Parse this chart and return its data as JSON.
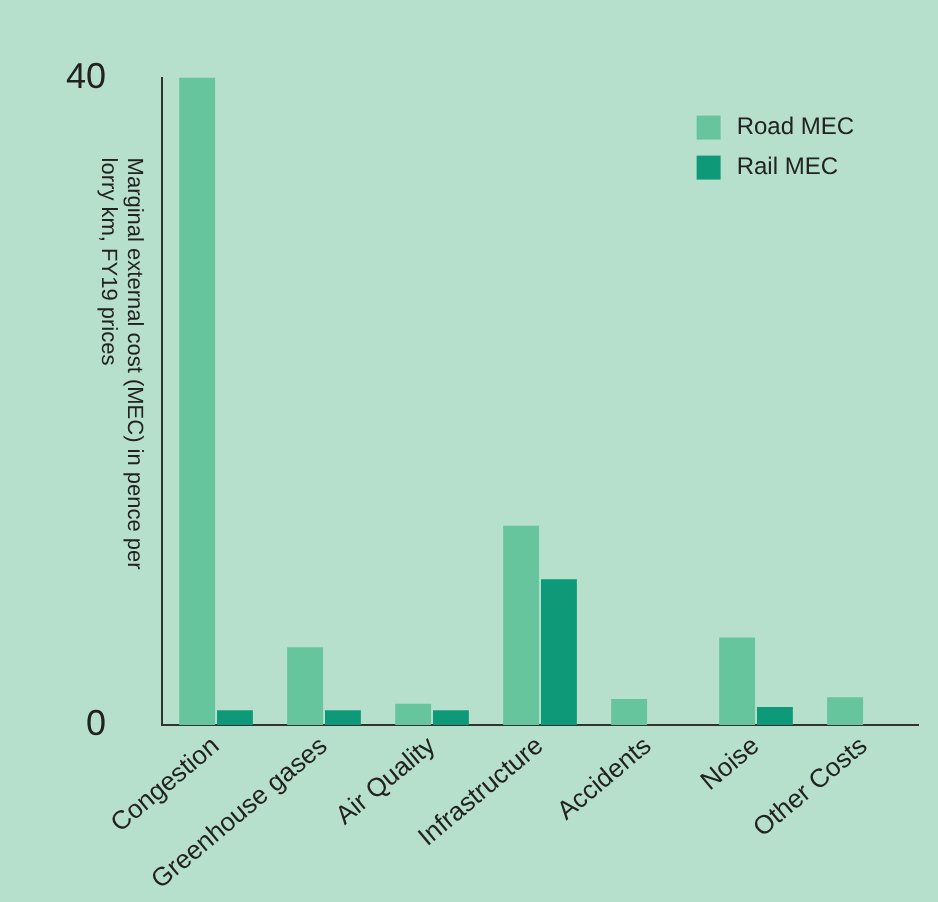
{
  "chart_data": {
    "type": "bar",
    "ylabel": "Marginal external cost (MEC) in pence per lorry km, FY19 prices",
    "categories": [
      "Congestion",
      "Greenhouse gases",
      "Air Quality",
      "Infrastructure",
      "Accidents",
      "Noise",
      "Other Costs"
    ],
    "series": [
      {
        "name": "Road MEC",
        "color": "#66c59c",
        "values": [
          40,
          4.8,
          1.3,
          12.3,
          1.6,
          5.4,
          1.7
        ]
      },
      {
        "name": "Rail MEC",
        "color": "#0e9a78",
        "values": [
          0.9,
          0.9,
          0.9,
          9.0,
          null,
          1.1,
          null
        ]
      }
    ],
    "ylim": [
      0,
      40
    ],
    "yticks": [
      0,
      40
    ],
    "grid": false,
    "legend": "top right"
  }
}
